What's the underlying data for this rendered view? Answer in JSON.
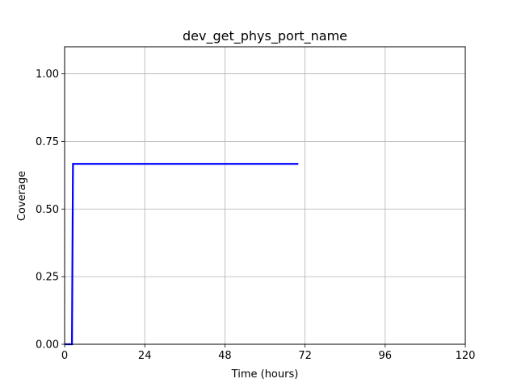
{
  "chart_data": {
    "type": "line",
    "title": "dev_get_phys_port_name",
    "xlabel": "Time (hours)",
    "ylabel": "Coverage",
    "xlim": [
      0,
      120
    ],
    "ylim": [
      0,
      1.1
    ],
    "xticks": [
      0,
      24,
      48,
      72,
      96,
      120
    ],
    "xtick_labels": [
      "0",
      "24",
      "48",
      "72",
      "96",
      "120"
    ],
    "yticks": [
      0,
      0.25,
      0.5,
      0.75,
      1.0
    ],
    "ytick_labels": [
      "0.00",
      "0.25",
      "0.50",
      "0.75",
      "1.00"
    ],
    "grid": true,
    "legend": false,
    "series": [
      {
        "color": "#0000ff",
        "x": [
          0,
          2.2,
          2.5,
          70
        ],
        "y": [
          0,
          0,
          0.667,
          0.667
        ]
      }
    ]
  }
}
